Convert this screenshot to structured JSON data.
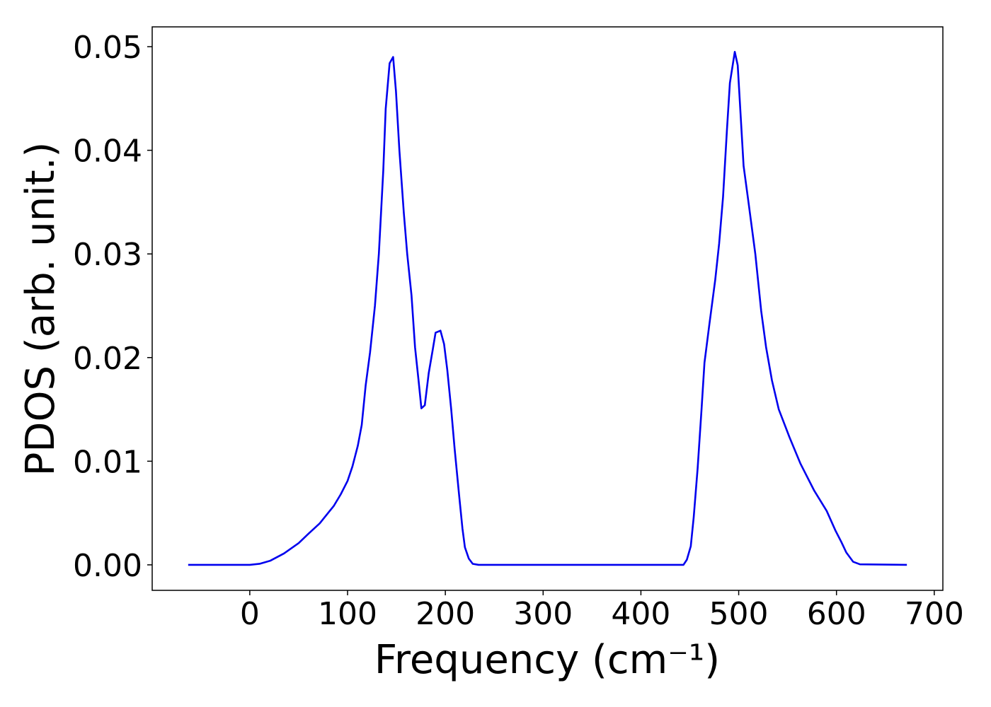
{
  "chart_data": {
    "type": "line",
    "xlabel": "Frequency (cm⁻¹)",
    "ylabel": "PDOS (arb. unit.)",
    "xlim": [
      -99.8,
      708.8
    ],
    "ylim": [
      -0.00246,
      0.05191
    ],
    "xticks": [
      0,
      100,
      200,
      300,
      400,
      500,
      600,
      700
    ],
    "yticks": [
      {
        "value": 0,
        "label": "0.00"
      },
      0.01,
      0.02,
      0.03,
      0.04,
      0.05
    ],
    "x": [
      -63,
      0,
      10,
      21,
      35,
      50,
      60,
      71.5,
      80,
      86,
      93,
      100,
      105,
      110.5,
      114.5,
      118.5,
      123,
      128,
      132,
      136.5,
      139,
      143,
      146.6,
      149.5,
      153,
      157.5,
      161,
      165.4,
      169,
      172.6,
      175.5,
      179,
      183,
      187,
      190,
      195,
      198.7,
      202,
      206,
      209.5,
      214,
      217.5,
      220,
      224,
      228,
      234,
      300,
      400,
      443.5,
      447,
      451,
      454,
      458,
      462,
      465,
      470,
      476,
      480,
      484,
      488,
      491,
      496,
      499,
      505,
      510,
      517,
      523,
      528,
      534,
      541,
      552,
      563,
      577,
      590,
      599,
      605,
      610,
      617,
      624,
      672
    ],
    "series": [
      {
        "name": "PDOS",
        "color": "#0000ee",
        "values": [
          0,
          0,
          0.0001,
          0.0004,
          0.0011,
          0.0021,
          0.003,
          0.004,
          0.005,
          0.0057,
          0.0068,
          0.0081,
          0.0095,
          0.0115,
          0.0135,
          0.0173,
          0.0205,
          0.025,
          0.03,
          0.038,
          0.044,
          0.0484,
          0.049,
          0.0457,
          0.04,
          0.034,
          0.03,
          0.026,
          0.021,
          0.0178,
          0.0151,
          0.0154,
          0.0185,
          0.0207,
          0.0224,
          0.0226,
          0.0213,
          0.0188,
          0.015,
          0.0112,
          0.0068,
          0.0035,
          0.0017,
          0.0006,
          0.0001,
          0,
          0,
          0,
          0,
          0.0005,
          0.0018,
          0.0046,
          0.0093,
          0.015,
          0.0195,
          0.0232,
          0.0275,
          0.031,
          0.0355,
          0.042,
          0.0465,
          0.0495,
          0.0482,
          0.0385,
          0.035,
          0.03,
          0.0245,
          0.021,
          0.0178,
          0.015,
          0.0123,
          0.0098,
          0.0072,
          0.0052,
          0.0033,
          0.0022,
          0.0012,
          0.0003,
          5e-05,
          0
        ]
      }
    ]
  }
}
